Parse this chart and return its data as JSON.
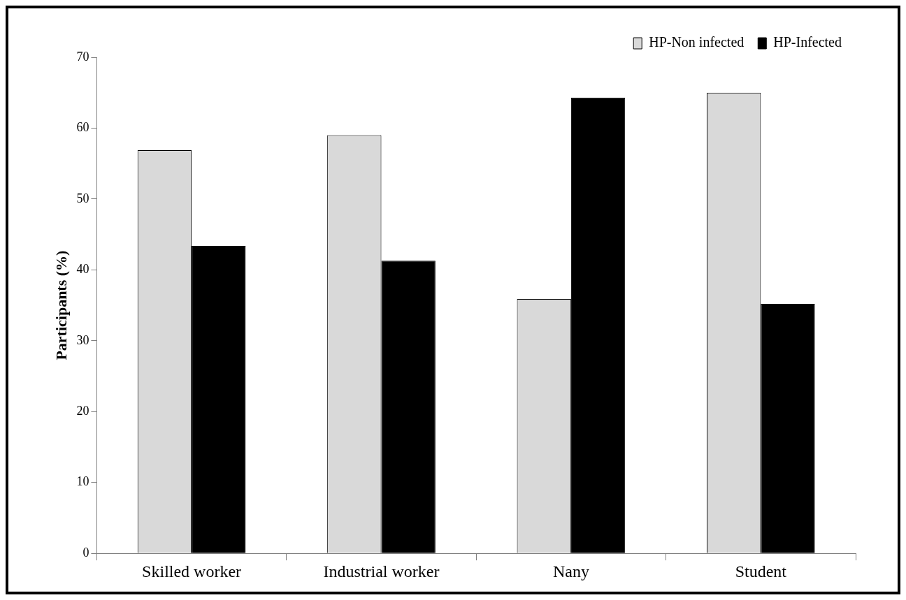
{
  "chart_data": {
    "type": "bar",
    "ylabel": "Participants (%)",
    "categories": [
      "Skilled worker",
      "Industrial worker",
      "Nany",
      "Student"
    ],
    "series": [
      {
        "name": "HP-Non infected",
        "color": "#d9d9d9",
        "values": [
          56.9,
          59.0,
          35.9,
          65.0
        ]
      },
      {
        "name": "HP-Infected",
        "color": "#000000",
        "values": [
          43.4,
          41.3,
          64.3,
          35.2
        ]
      }
    ],
    "ylim": [
      0,
      70
    ],
    "yticks": [
      0,
      10,
      20,
      30,
      40,
      50,
      60,
      70
    ],
    "grid": false,
    "legend": "top right"
  }
}
